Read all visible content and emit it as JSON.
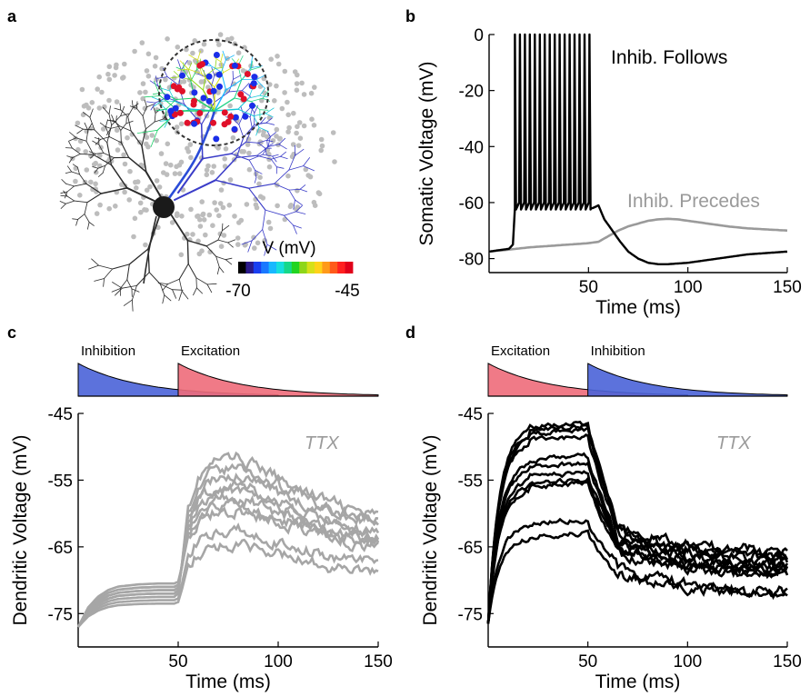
{
  "panels": {
    "a": "a",
    "b": "b",
    "c": "c",
    "d": "d"
  },
  "colorbar": {
    "label": "V (mV)",
    "min_label": "-70",
    "max_label": "-45",
    "colors": [
      "#000000",
      "#2b1a8a",
      "#1a3ff0",
      "#1a78ff",
      "#18b8ff",
      "#17dede",
      "#16d88a",
      "#22d422",
      "#8ed61a",
      "#d6e01a",
      "#ffd21a",
      "#ff9a1a",
      "#ff5a1a",
      "#ff2020",
      "#e0001a"
    ]
  },
  "neuron": {
    "dot_color": "#bdbdbd",
    "soma_color": "#1a1a1a",
    "synapse_colors": [
      "#e0102a",
      "#1a2ee8"
    ]
  },
  "chart_data": [
    {
      "id": "b",
      "type": "line",
      "xlabel": "Time (ms)",
      "ylabel": "Somatic Voltage (mV)",
      "xlim": [
        0,
        150
      ],
      "ylim": [
        -85,
        0
      ],
      "xticks": [
        50,
        100,
        150
      ],
      "yticks": [
        0,
        -20,
        -40,
        -60,
        -80
      ],
      "annotations": [
        "Inhib. Follows",
        "Inhib. Precedes"
      ],
      "series": [
        {
          "name": "Inhib. Follows",
          "color": "#000000",
          "spike_times": [
            13,
            15.5,
            18,
            20.5,
            23,
            25.5,
            28,
            30.5,
            33,
            35.5,
            38,
            40.5,
            43,
            45.5,
            48,
            50.5
          ],
          "spike_peak": 0,
          "spike_trough": -62,
          "x": [
            0,
            5,
            10,
            12,
            13,
            52,
            55,
            58,
            62,
            66,
            70,
            75,
            80,
            85,
            90,
            100,
            110,
            120,
            130,
            140,
            150
          ],
          "y": [
            -77.5,
            -77,
            -76.5,
            -75,
            -62,
            -62,
            -61,
            -66,
            -70,
            -74,
            -77.5,
            -80,
            -81.5,
            -82,
            -82,
            -81.5,
            -80.5,
            -79.5,
            -78.5,
            -78,
            -77.5
          ]
        },
        {
          "name": "Inhib. Precedes",
          "color": "#9a9a9a",
          "x": [
            0,
            10,
            20,
            30,
            40,
            50,
            55,
            60,
            65,
            70,
            75,
            80,
            85,
            90,
            95,
            100,
            110,
            120,
            130,
            140,
            150
          ],
          "y": [
            -77.5,
            -76.8,
            -76,
            -75.5,
            -75,
            -74.5,
            -74,
            -72,
            -70,
            -68.5,
            -67.5,
            -66.5,
            -66,
            -65.8,
            -66,
            -66.5,
            -67.5,
            -68.5,
            -69.2,
            -69.6,
            -70
          ]
        }
      ]
    },
    {
      "id": "c",
      "type": "line",
      "xlabel": "Time (ms)",
      "ylabel": "Dendritic Voltage (mV)",
      "xlim": [
        0,
        150
      ],
      "ylim": [
        -80,
        -45
      ],
      "xticks": [
        50,
        100,
        150
      ],
      "yticks": [
        -45,
        -55,
        -65,
        -75
      ],
      "annotations": [
        "TTX"
      ],
      "pulses": [
        {
          "label": "Inhibition",
          "start": 0,
          "end": 100,
          "color": "#4a63d8"
        },
        {
          "label": "Excitation",
          "start": 50,
          "end": 150,
          "color": "#ee6b7a"
        }
      ],
      "color": "#a6a6a6",
      "base_x": [
        0,
        5,
        10,
        15,
        20,
        30,
        40,
        48,
        50,
        52,
        55,
        60,
        65,
        70,
        80,
        90,
        100,
        110,
        120,
        130,
        140,
        150
      ],
      "base_shape": [
        0,
        0.45,
        0.7,
        0.85,
        0.93,
        0.98,
        1.0,
        1.0,
        1.05,
        1.5,
        2.3,
        2.7,
        2.85,
        2.95,
        3.0,
        2.97,
        2.88,
        2.7,
        2.55,
        2.45,
        2.4,
        2.38
      ],
      "series": [
        {
          "start": -77,
          "plateau": -72.5,
          "peak": -51.5,
          "end": -60.5
        },
        {
          "start": -77,
          "plateau": -72,
          "peak": -53,
          "end": -61
        },
        {
          "start": -77,
          "plateau": -72,
          "peak": -54,
          "end": -62
        },
        {
          "start": -77,
          "plateau": -71.5,
          "peak": -55.5,
          "end": -63
        },
        {
          "start": -77,
          "plateau": -71.5,
          "peak": -56.5,
          "end": -63.5
        },
        {
          "start": -77,
          "plateau": -71,
          "peak": -57.5,
          "end": -64
        },
        {
          "start": -77,
          "plateau": -71,
          "peak": -58.5,
          "end": -64.5
        },
        {
          "start": -77,
          "plateau": -70.5,
          "peak": -59.5,
          "end": -65
        },
        {
          "start": -77,
          "plateau": -73,
          "peak": -62.5,
          "end": -67.5
        },
        {
          "start": -77,
          "plateau": -73.5,
          "peak": -64.5,
          "end": -69
        }
      ]
    },
    {
      "id": "d",
      "type": "line",
      "xlabel": "Time (ms)",
      "ylabel": "Dendritic Voltage (mV)",
      "xlim": [
        0,
        150
      ],
      "ylim": [
        -80,
        -45
      ],
      "xticks": [
        50,
        100,
        150
      ],
      "yticks": [
        -45,
        -55,
        -65,
        -75
      ],
      "annotations": [
        "TTX"
      ],
      "pulses": [
        {
          "label": "Excitation",
          "start": 0,
          "end": 100,
          "color": "#ee6b7a"
        },
        {
          "label": "Inhibition",
          "start": 50,
          "end": 150,
          "color": "#4a63d8"
        }
      ],
      "color": "#000000",
      "series": [
        {
          "start": -76.5,
          "peak": -47,
          "dip": -62,
          "end": -66
        },
        {
          "start": -76.5,
          "peak": -47.5,
          "dip": -62.5,
          "end": -66.5
        },
        {
          "start": -76.5,
          "peak": -48,
          "dip": -63,
          "end": -67
        },
        {
          "start": -76.5,
          "peak": -49,
          "dip": -63.5,
          "end": -67.5
        },
        {
          "start": -76.5,
          "peak": -52,
          "dip": -64,
          "end": -68
        },
        {
          "start": -76.5,
          "peak": -53,
          "dip": -64.5,
          "end": -68.5
        },
        {
          "start": -76.5,
          "peak": -54.5,
          "dip": -65,
          "end": -68.8
        },
        {
          "start": -76.5,
          "peak": -55.5,
          "dip": -65.5,
          "end": -69
        },
        {
          "start": -76.5,
          "peak": -56,
          "dip": -66,
          "end": -69.5
        },
        {
          "start": -76.5,
          "peak": -61.5,
          "dip": -68,
          "end": -72
        },
        {
          "start": -76.5,
          "peak": -63.5,
          "dip": -69,
          "end": -72.5
        }
      ]
    }
  ]
}
